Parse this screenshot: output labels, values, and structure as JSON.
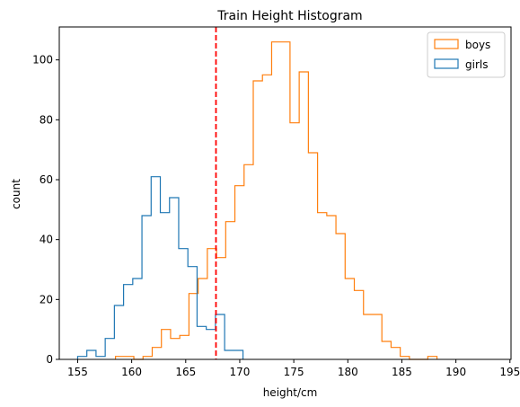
{
  "chart_data": {
    "type": "histogram",
    "title": "Train Height Histogram",
    "xlabel": "height/cm",
    "ylabel": "count",
    "xlim": [
      153.3,
      195.1
    ],
    "ylim": [
      0,
      111
    ],
    "xticks": [
      155,
      160,
      165,
      170,
      175,
      180,
      185,
      190,
      195
    ],
    "yticks": [
      0,
      20,
      40,
      60,
      80,
      100
    ],
    "grid": false,
    "legend_position": "upper right",
    "series": [
      {
        "name": "boys",
        "color": "#ff7f0e",
        "bin_start": 158.5,
        "bin_width": 0.85,
        "counts": [
          1,
          1,
          0,
          1,
          4,
          10,
          7,
          8,
          22,
          27,
          37,
          34,
          46,
          58,
          65,
          93,
          95,
          106,
          106,
          79,
          96,
          69,
          49,
          48,
          42,
          27,
          23,
          15,
          15,
          6,
          4,
          1,
          0,
          0,
          1
        ]
      },
      {
        "name": "girls",
        "color": "#1f77b4",
        "bin_start": 155.0,
        "bin_width": 0.85,
        "counts": [
          1,
          3,
          1,
          7,
          18,
          25,
          27,
          48,
          61,
          49,
          54,
          37,
          31,
          11,
          10,
          15,
          3,
          3
        ]
      }
    ],
    "vline": {
      "x": 167.8,
      "color": "#ff0000",
      "style": "dashed"
    }
  }
}
